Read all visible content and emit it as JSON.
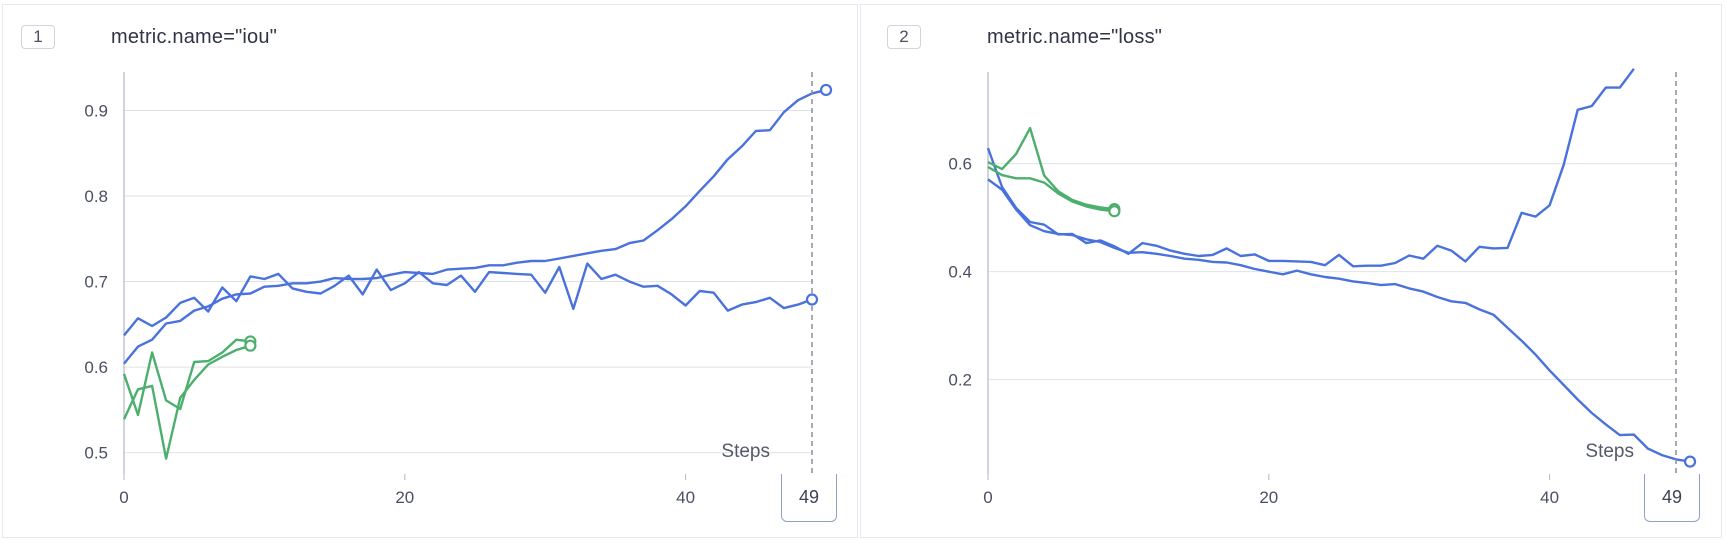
{
  "panels": [
    {
      "index_label": "1",
      "title": "metric.name=\"iou\"",
      "x_label": "Steps",
      "current_step": "49"
    },
    {
      "index_label": "2",
      "title": "metric.name=\"loss\"",
      "x_label": "Steps",
      "current_step": "49"
    }
  ],
  "colors": {
    "blue": "#4a72dc",
    "green": "#4caf6e",
    "grid": "#dfe2e8",
    "axis": "#b3b8c4"
  },
  "chart_data": [
    {
      "type": "line",
      "title": "metric.name=\"iou\"",
      "xlabel": "Steps",
      "ylabel": "",
      "xlim": [
        0,
        49
      ],
      "ylim": [
        0.475,
        0.945
      ],
      "x_ticks": [
        0,
        20,
        40
      ],
      "y_ticks": [
        0.5,
        0.6,
        0.7,
        0.8,
        0.9
      ],
      "cursor_step": 49,
      "grid": true,
      "series": [
        {
          "color": "#4a72dc",
          "x_start": 0,
          "values": [
            0.637,
            0.657,
            0.648,
            0.658,
            0.675,
            0.681,
            0.665,
            0.693,
            0.677,
            0.706,
            0.703,
            0.709,
            0.692,
            0.688,
            0.686,
            0.695,
            0.707,
            0.685,
            0.714,
            0.69,
            0.698,
            0.711,
            0.698,
            0.696,
            0.707,
            0.688,
            0.711,
            0.71,
            0.709,
            0.708,
            0.687,
            0.717,
            0.668,
            0.721,
            0.703,
            0.708,
            0.7,
            0.694,
            0.695,
            0.685,
            0.672,
            0.689,
            0.687,
            0.666,
            0.673,
            0.676,
            0.681,
            0.669,
            0.673,
            0.679
          ],
          "end_marker": true
        },
        {
          "color": "#4a72dc",
          "x_start": 0,
          "values": [
            0.604,
            0.624,
            0.632,
            0.651,
            0.654,
            0.666,
            0.671,
            0.68,
            0.685,
            0.686,
            0.694,
            0.695,
            0.698,
            0.698,
            0.7,
            0.704,
            0.703,
            0.703,
            0.704,
            0.708,
            0.711,
            0.71,
            0.709,
            0.714,
            0.715,
            0.716,
            0.719,
            0.719,
            0.722,
            0.724,
            0.724,
            0.727,
            0.73,
            0.733,
            0.736,
            0.738,
            0.745,
            0.748,
            0.76,
            0.773,
            0.788,
            0.806,
            0.823,
            0.843,
            0.858,
            0.876,
            0.877,
            0.898,
            0.912,
            0.92,
            0.924
          ],
          "end_marker": true
        },
        {
          "color": "#4caf6e",
          "x_start": 0,
          "values": [
            0.592,
            0.544,
            0.617,
            0.561,
            0.551,
            0.606,
            0.607,
            0.617,
            0.632,
            0.63
          ],
          "end_marker": true
        },
        {
          "color": "#4caf6e",
          "x_start": 0,
          "values": [
            0.539,
            0.574,
            0.578,
            0.493,
            0.564,
            0.585,
            0.603,
            0.612,
            0.62,
            0.625
          ],
          "end_marker": true
        }
      ]
    },
    {
      "type": "line",
      "title": "metric.name=\"loss\"",
      "xlabel": "Steps",
      "ylabel": "",
      "xlim": [
        0,
        49
      ],
      "ylim": [
        0.025,
        0.77
      ],
      "x_ticks": [
        0,
        20,
        40
      ],
      "y_ticks": [
        0.2,
        0.4,
        0.6
      ],
      "cursor_step": 49,
      "grid": true,
      "series": [
        {
          "color": "#4a72dc",
          "x_start": 0,
          "values": [
            0.629,
            0.557,
            0.518,
            0.492,
            0.487,
            0.469,
            0.47,
            0.453,
            0.458,
            0.447,
            0.433,
            0.453,
            0.448,
            0.439,
            0.433,
            0.429,
            0.431,
            0.443,
            0.429,
            0.432,
            0.42,
            0.42,
            0.419,
            0.418,
            0.412,
            0.431,
            0.41,
            0.411,
            0.411,
            0.416,
            0.43,
            0.424,
            0.448,
            0.439,
            0.419,
            0.446,
            0.443,
            0.444,
            0.509,
            0.502,
            0.523,
            0.598,
            0.7,
            0.707,
            0.741,
            0.741,
            0.776
          ],
          "end_marker": false
        },
        {
          "color": "#4a72dc",
          "x_start": 0,
          "values": [
            0.571,
            0.552,
            0.515,
            0.486,
            0.475,
            0.47,
            0.468,
            0.46,
            0.455,
            0.444,
            0.435,
            0.436,
            0.433,
            0.429,
            0.424,
            0.422,
            0.418,
            0.417,
            0.412,
            0.405,
            0.4,
            0.395,
            0.402,
            0.395,
            0.39,
            0.387,
            0.382,
            0.379,
            0.375,
            0.377,
            0.369,
            0.363,
            0.353,
            0.345,
            0.342,
            0.33,
            0.32,
            0.296,
            0.272,
            0.246,
            0.217,
            0.19,
            0.163,
            0.138,
            0.117,
            0.097,
            0.098,
            0.072,
            0.06,
            0.052,
            0.048
          ],
          "end_marker": true
        },
        {
          "color": "#4caf6e",
          "x_start": 0,
          "values": [
            0.603,
            0.59,
            0.618,
            0.666,
            0.578,
            0.549,
            0.533,
            0.524,
            0.519,
            0.516
          ],
          "end_marker": true
        },
        {
          "color": "#4caf6e",
          "x_start": 0,
          "values": [
            0.594,
            0.579,
            0.573,
            0.573,
            0.565,
            0.545,
            0.53,
            0.521,
            0.515,
            0.512
          ],
          "end_marker": true
        }
      ]
    }
  ]
}
